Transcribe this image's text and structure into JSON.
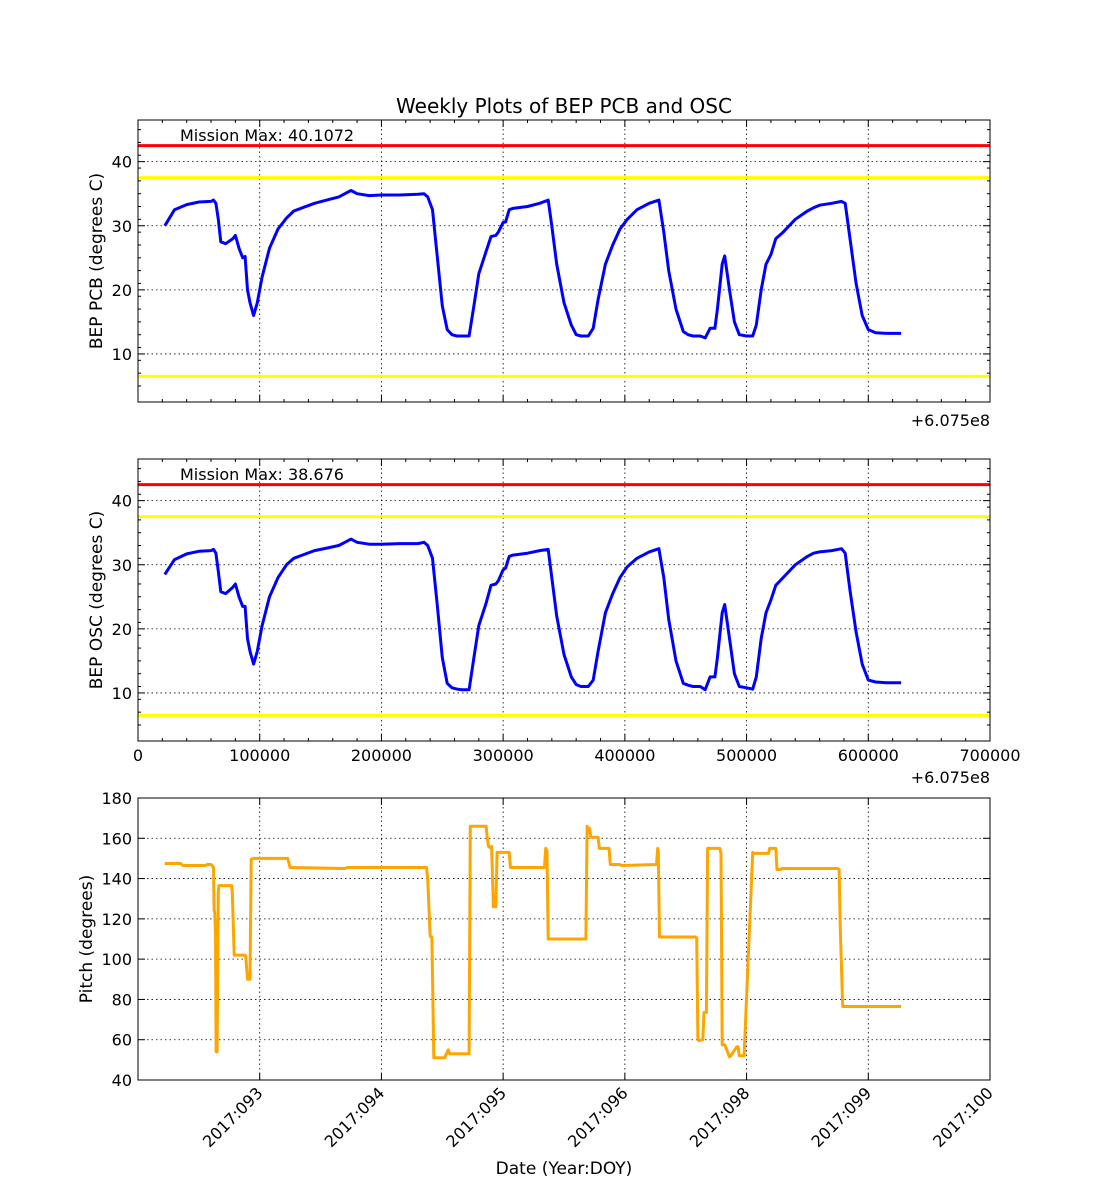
{
  "chart_data": [
    {
      "type": "line",
      "title": "Weekly Plots of BEP PCB and OSC",
      "ylabel": "BEP PCB (degrees C)",
      "offset_label": "+6.075e8",
      "annotation": "Mission Max: 40.1072",
      "xlim": [
        0,
        700000
      ],
      "ylim": [
        2.5,
        46.5
      ],
      "yticks": [
        "10",
        "20",
        "30",
        "40"
      ],
      "xticks_visible": false,
      "grid": true,
      "limit_lines": [
        {
          "y": 42.5,
          "color": "#ff0000"
        },
        {
          "y": 37.5,
          "color": "#ffff00"
        },
        {
          "y": 6.5,
          "color": "#ffff00"
        }
      ],
      "series": [
        {
          "color": "#0000ff",
          "x": [
            22000,
            30000,
            40000,
            50000,
            60000,
            62000,
            64000,
            66000,
            68000,
            72000,
            78000,
            80000,
            83000,
            86000,
            88000,
            90000,
            92000,
            95000,
            98000,
            102000,
            108000,
            115000,
            122000,
            128000,
            135000,
            145000,
            155000,
            165000,
            170000,
            175000,
            180000,
            190000,
            200000,
            215000,
            230000,
            235000,
            238000,
            242000,
            246000,
            250000,
            254000,
            258000,
            262000,
            266000,
            272000,
            276000,
            280000,
            286000,
            290000,
            294000,
            296000,
            300000,
            302000,
            305000,
            308000,
            320000,
            330000,
            337000,
            340000,
            344000,
            350000,
            356000,
            360000,
            364000,
            370000,
            374000,
            378000,
            384000,
            390000,
            396000,
            402000,
            410000,
            420000,
            428000,
            432000,
            436000,
            442000,
            448000,
            452000,
            456000,
            462000,
            466000,
            470000,
            474000,
            476000,
            480000,
            482000,
            486000,
            490000,
            494000,
            500000,
            505000,
            508000,
            512000,
            516000,
            520000,
            524000,
            530000,
            540000,
            550000,
            555000,
            560000,
            570000,
            578000,
            581000,
            585000,
            590000,
            595000,
            600000,
            606000,
            615000,
            627000
          ],
          "values": [
            30.0,
            32.5,
            33.3,
            33.7,
            33.8,
            34.0,
            33.5,
            31.0,
            27.5,
            27.2,
            28.0,
            28.5,
            26.5,
            25.0,
            25.2,
            20.0,
            18.0,
            16.0,
            18.0,
            22.0,
            26.5,
            29.5,
            31.2,
            32.3,
            32.8,
            33.5,
            34.0,
            34.5,
            35.0,
            35.5,
            35.0,
            34.7,
            34.8,
            34.8,
            34.9,
            35.0,
            34.5,
            32.5,
            25.0,
            17.5,
            13.8,
            13.0,
            12.8,
            12.8,
            12.8,
            17.5,
            22.5,
            26.0,
            28.3,
            28.5,
            29.0,
            30.5,
            30.6,
            32.5,
            32.7,
            33.0,
            33.5,
            34.0,
            30.0,
            24.0,
            18.0,
            14.5,
            13.0,
            12.8,
            12.8,
            14.0,
            18.5,
            24.0,
            27.0,
            29.5,
            31.0,
            32.5,
            33.5,
            34.0,
            29.0,
            23.0,
            17.0,
            13.5,
            13.0,
            12.8,
            12.8,
            12.5,
            14.0,
            14.0,
            17.0,
            24.0,
            25.3,
            20.0,
            15.0,
            13.0,
            12.8,
            12.8,
            14.5,
            20.0,
            24.0,
            25.5,
            28.0,
            29.0,
            31.0,
            32.3,
            32.8,
            33.2,
            33.5,
            33.8,
            33.5,
            28.0,
            21.0,
            16.0,
            13.8,
            13.3,
            13.2,
            13.2
          ]
        }
      ]
    },
    {
      "type": "line",
      "ylabel": "BEP OSC (degrees C)",
      "offset_label": "+6.075e8",
      "annotation": "Mission Max: 38.676",
      "xlim": [
        0,
        700000
      ],
      "ylim": [
        2.5,
        46.5
      ],
      "yticks": [
        "10",
        "20",
        "30",
        "40"
      ],
      "xticks": [
        "0",
        "100000",
        "200000",
        "300000",
        "400000",
        "500000",
        "600000",
        "700000"
      ],
      "grid": true,
      "limit_lines": [
        {
          "y": 42.5,
          "color": "#ff0000"
        },
        {
          "y": 37.5,
          "color": "#ffff00"
        },
        {
          "y": 6.5,
          "color": "#ffff00"
        }
      ],
      "series": [
        {
          "color": "#0000ff",
          "x": [
            22000,
            30000,
            40000,
            50000,
            60000,
            62000,
            64000,
            66000,
            68000,
            72000,
            78000,
            80000,
            83000,
            86000,
            88000,
            90000,
            92000,
            95000,
            98000,
            102000,
            108000,
            115000,
            122000,
            128000,
            135000,
            145000,
            155000,
            165000,
            170000,
            175000,
            180000,
            190000,
            200000,
            215000,
            230000,
            235000,
            238000,
            242000,
            246000,
            250000,
            254000,
            258000,
            262000,
            266000,
            272000,
            276000,
            280000,
            286000,
            290000,
            294000,
            296000,
            300000,
            302000,
            305000,
            308000,
            320000,
            330000,
            337000,
            340000,
            344000,
            350000,
            356000,
            360000,
            364000,
            370000,
            374000,
            378000,
            384000,
            390000,
            396000,
            402000,
            410000,
            420000,
            428000,
            432000,
            436000,
            442000,
            448000,
            452000,
            456000,
            462000,
            466000,
            470000,
            474000,
            476000,
            480000,
            482000,
            486000,
            490000,
            494000,
            500000,
            505000,
            508000,
            512000,
            516000,
            520000,
            524000,
            530000,
            540000,
            550000,
            555000,
            560000,
            570000,
            578000,
            581000,
            585000,
            590000,
            595000,
            600000,
            606000,
            615000,
            627000
          ],
          "values": [
            28.5,
            30.8,
            31.7,
            32.1,
            32.2,
            32.4,
            31.8,
            29.0,
            25.8,
            25.5,
            26.5,
            27.0,
            25.0,
            23.5,
            23.5,
            18.5,
            16.5,
            14.5,
            16.5,
            20.5,
            25.0,
            28.0,
            30.0,
            31.0,
            31.5,
            32.2,
            32.6,
            33.0,
            33.5,
            34.0,
            33.5,
            33.2,
            33.2,
            33.3,
            33.3,
            33.5,
            33.0,
            31.0,
            23.5,
            15.5,
            11.5,
            10.8,
            10.6,
            10.5,
            10.5,
            15.5,
            20.5,
            24.0,
            26.8,
            27.0,
            27.5,
            29.2,
            29.5,
            31.3,
            31.5,
            31.8,
            32.2,
            32.4,
            28.0,
            22.0,
            16.0,
            12.5,
            11.3,
            11.0,
            11.0,
            12.0,
            16.5,
            22.5,
            25.5,
            28.0,
            29.7,
            31.0,
            32.0,
            32.5,
            28.0,
            21.5,
            15.0,
            11.5,
            11.2,
            11.0,
            11.0,
            10.5,
            12.5,
            12.5,
            15.5,
            22.5,
            23.8,
            18.5,
            13.0,
            11.0,
            10.8,
            10.6,
            12.5,
            18.5,
            22.5,
            24.5,
            26.8,
            28.0,
            30.0,
            31.3,
            31.8,
            32.0,
            32.2,
            32.5,
            31.8,
            26.0,
            19.5,
            14.5,
            12.0,
            11.7,
            11.6,
            11.6
          ]
        }
      ]
    },
    {
      "type": "line",
      "ylabel": "Pitch (degrees)",
      "xlabel": "Date (Year:DOY)",
      "ylim": [
        40,
        180
      ],
      "yticks": [
        "40",
        "60",
        "80",
        "100",
        "120",
        "140",
        "160",
        "180"
      ],
      "xticks": [
        "2017:093",
        "2017:094",
        "2017:095",
        "2017:096",
        "2017:098",
        "2017:099",
        "2017:100"
      ],
      "grid": true,
      "series": [
        {
          "color": "#ffa500",
          "x": [
            22000,
            35000,
            37000,
            55000,
            57000,
            60000,
            61000,
            61500,
            62000,
            62500,
            63000,
            63700,
            64200,
            65000,
            66000,
            66500,
            77000,
            77500,
            79000,
            80000,
            88000,
            88500,
            90000,
            92000,
            93000,
            95000,
            123000,
            125000,
            170000,
            172000,
            230000,
            237000,
            238000,
            240000,
            240500,
            241500,
            243000,
            252000,
            253000,
            255000,
            256000,
            262000,
            272000,
            273000,
            286000,
            287000,
            288000,
            290000,
            290500,
            292000,
            292500,
            294000,
            295000,
            296000,
            297000,
            305000,
            306000,
            334000,
            335000,
            336000,
            337000,
            338000,
            368000,
            369000,
            370000,
            371000,
            372000,
            378000,
            379000,
            387000,
            388000,
            396000,
            397000,
            426000,
            427000,
            427500,
            428500,
            458000,
            459000,
            460000,
            461000,
            464000,
            465000,
            467000,
            468000,
            477000,
            478000,
            479000,
            480000,
            482000,
            486000,
            487000,
            492000,
            493000,
            494000,
            497000,
            498000,
            505000,
            506000,
            518000,
            519000,
            524000,
            525000,
            528000,
            529000,
            575000,
            576000,
            577000,
            579000,
            580000,
            627000
          ],
          "values": [
            147.5,
            147.5,
            146.5,
            146.5,
            147.0,
            147.0,
            146.5,
            145.5,
            145.5,
            124.0,
            123.5,
            113.0,
            54.0,
            54.0,
            133.0,
            136.5,
            136.5,
            133.0,
            102.0,
            102.0,
            102.0,
            101.5,
            90.0,
            90.0,
            149.5,
            150.0,
            150.0,
            145.5,
            145.0,
            145.5,
            145.5,
            145.5,
            140.0,
            112.0,
            111.0,
            111.0,
            51.0,
            51.0,
            52.5,
            55.0,
            53.0,
            53.0,
            53.0,
            166.0,
            166.0,
            160.0,
            156.0,
            155.0,
            156.0,
            126.0,
            127.0,
            126.0,
            153.0,
            153.0,
            153.0,
            153.0,
            145.5,
            145.5,
            155.0,
            153.5,
            110.0,
            110.0,
            110.0,
            166.0,
            163.0,
            165.0,
            160.5,
            160.5,
            155.0,
            155.0,
            147.0,
            147.0,
            146.5,
            147.0,
            155.0,
            153.0,
            111.0,
            111.0,
            110.5,
            60.0,
            59.5,
            60.0,
            73.5,
            73.5,
            155.0,
            155.0,
            155.0,
            152.5,
            57.5,
            57.5,
            51.5,
            52.0,
            56.5,
            56.5,
            52.0,
            52.0,
            52.0,
            153.0,
            152.5,
            152.5,
            155.0,
            155.0,
            144.5,
            144.5,
            145.0,
            145.0,
            144.5,
            115.0,
            76.5,
            76.5,
            76.5
          ]
        }
      ]
    }
  ]
}
